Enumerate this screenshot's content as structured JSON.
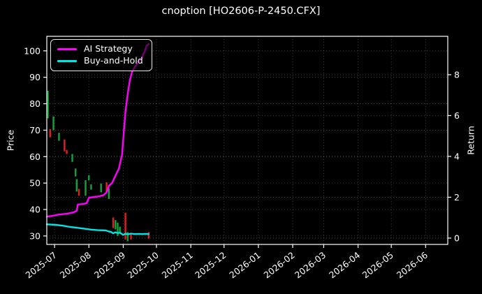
{
  "title": "cnoption [HO2606-P-2450.CFX]",
  "legend": {
    "items": [
      {
        "label": "AI Strategy",
        "color": "#ff00ff"
      },
      {
        "label": "Buy-and-Hold",
        "color": "#00e5e5"
      }
    ]
  },
  "axes": {
    "left": {
      "label": "Price",
      "ticks": [
        30,
        40,
        50,
        60,
        70,
        80,
        90,
        100
      ],
      "range": [
        26.8,
        105.5
      ]
    },
    "right": {
      "label": "Return",
      "ticks": [
        0,
        2,
        4,
        6,
        8
      ],
      "range": [
        -0.31,
        9.88
      ]
    },
    "x": {
      "tick_labels": [
        "2025-07",
        "2025-08",
        "2025-09",
        "2025-10",
        "2025-11",
        "2025-12",
        "2026-01",
        "2026-02",
        "2026-03",
        "2026-04",
        "2026-05",
        "2026-06"
      ],
      "tick_dates": [
        "2025-07-01",
        "2025-08-01",
        "2025-09-01",
        "2025-10-01",
        "2025-11-01",
        "2025-12-01",
        "2026-01-01",
        "2026-02-01",
        "2026-03-01",
        "2026-04-01",
        "2026-05-01",
        "2026-06-01"
      ],
      "range": [
        "2025-06-24",
        "2026-06-21"
      ],
      "tick_rotation": -38
    }
  },
  "chart_data": {
    "type": "mixed",
    "grid": true,
    "legend_position": "upper-left",
    "series": [
      {
        "name": "AI Strategy",
        "type": "line",
        "axis": "price",
        "color": "#ff00ff",
        "points": [
          [
            "2025-06-24",
            37.3
          ],
          [
            "2025-06-29",
            37.6
          ],
          [
            "2025-07-05",
            38.1
          ],
          [
            "2025-07-12",
            38.4
          ],
          [
            "2025-07-18",
            38.9
          ],
          [
            "2025-07-21",
            39.5
          ],
          [
            "2025-07-22",
            41.9
          ],
          [
            "2025-07-27",
            42.1
          ],
          [
            "2025-07-30",
            42.4
          ],
          [
            "2025-08-01",
            44.5
          ],
          [
            "2025-08-09",
            44.9
          ],
          [
            "2025-08-14",
            45.4
          ],
          [
            "2025-08-17",
            46.5
          ],
          [
            "2025-08-19",
            48.9
          ],
          [
            "2025-08-22",
            50.1
          ],
          [
            "2025-08-24",
            51.9
          ],
          [
            "2025-08-26",
            53.7
          ],
          [
            "2025-08-28",
            55.4
          ],
          [
            "2025-08-29",
            57.2
          ],
          [
            "2025-08-31",
            60.9
          ],
          [
            "2025-09-01",
            66.5
          ],
          [
            "2025-09-02",
            71.7
          ],
          [
            "2025-09-03",
            77.0
          ],
          [
            "2025-09-05",
            83.6
          ],
          [
            "2025-09-07",
            88.9
          ],
          [
            "2025-09-09",
            92.1
          ],
          [
            "2025-09-12",
            94.2
          ],
          [
            "2025-09-15",
            96.0
          ],
          [
            "2025-09-18",
            97.4
          ],
          [
            "2025-09-19",
            98.7
          ],
          [
            "2025-09-21",
            100.3
          ],
          [
            "2025-09-22",
            101.8
          ],
          [
            "2025-09-24",
            102.6
          ]
        ]
      },
      {
        "name": "Buy-and-Hold",
        "type": "line",
        "axis": "price",
        "color": "#00e5e5",
        "points": [
          [
            "2025-06-24",
            34.4
          ],
          [
            "2025-07-02",
            34.2
          ],
          [
            "2025-07-08",
            33.9
          ],
          [
            "2025-07-15",
            33.4
          ],
          [
            "2025-07-21",
            33.1
          ],
          [
            "2025-07-27",
            32.8
          ],
          [
            "2025-08-03",
            32.4
          ],
          [
            "2025-08-09",
            32.2
          ],
          [
            "2025-08-16",
            32.1
          ],
          [
            "2025-08-19",
            31.7
          ],
          [
            "2025-08-21",
            31.5
          ],
          [
            "2025-08-23",
            31.0
          ],
          [
            "2025-08-25",
            31.4
          ],
          [
            "2025-08-27",
            31.1
          ],
          [
            "2025-08-29",
            31.2
          ],
          [
            "2025-09-01",
            30.4
          ],
          [
            "2025-09-03",
            30.9
          ],
          [
            "2025-09-05",
            30.6
          ],
          [
            "2025-09-08",
            30.9
          ],
          [
            "2025-09-11",
            30.7
          ],
          [
            "2025-09-15",
            30.8
          ],
          [
            "2025-09-18",
            30.7
          ],
          [
            "2025-09-21",
            30.8
          ],
          [
            "2025-09-24",
            30.7
          ]
        ]
      },
      {
        "name": "Price candles",
        "type": "candlestick",
        "axis": "price",
        "up_color": "#0fa43c",
        "down_color": "#e32020",
        "candles": [
          {
            "date": "2025-06-25",
            "low": 74.5,
            "high": 84.9,
            "dir": "up"
          },
          {
            "date": "2025-06-27",
            "low": 67.3,
            "high": 70.4,
            "dir": "down"
          },
          {
            "date": "2025-06-30",
            "low": 70.0,
            "high": 75.2,
            "dir": "up"
          },
          {
            "date": "2025-07-05",
            "low": 66.0,
            "high": 69.0,
            "dir": "up"
          },
          {
            "date": "2025-07-10",
            "low": 62.0,
            "high": 66.5,
            "dir": "down"
          },
          {
            "date": "2025-07-12",
            "low": 61.0,
            "high": 62.5,
            "dir": "down"
          },
          {
            "date": "2025-07-17",
            "low": 58.0,
            "high": 61.0,
            "dir": "up"
          },
          {
            "date": "2025-07-20",
            "low": 52.5,
            "high": 55.5,
            "dir": "up"
          },
          {
            "date": "2025-07-21",
            "low": 46.8,
            "high": 51.5,
            "dir": "up"
          },
          {
            "date": "2025-07-23",
            "low": 45.2,
            "high": 47.8,
            "dir": "down"
          },
          {
            "date": "2025-07-29",
            "low": 45.2,
            "high": 51.1,
            "dir": "up"
          },
          {
            "date": "2025-08-01",
            "low": 51.0,
            "high": 53.0,
            "dir": "up"
          },
          {
            "date": "2025-08-03",
            "low": 47.5,
            "high": 49.5,
            "dir": "up"
          },
          {
            "date": "2025-08-12",
            "low": 46.5,
            "high": 49.8,
            "dir": "up"
          },
          {
            "date": "2025-08-17",
            "low": 46.7,
            "high": 50.3,
            "dir": "down"
          },
          {
            "date": "2025-08-19",
            "low": 44.0,
            "high": 48.0,
            "dir": "up"
          },
          {
            "date": "2025-08-23",
            "low": 33.0,
            "high": 37.0,
            "dir": "down"
          },
          {
            "date": "2025-08-25",
            "low": 32.5,
            "high": 36.0,
            "dir": "up"
          },
          {
            "date": "2025-08-27",
            "low": 30.0,
            "high": 35.0,
            "dir": "up"
          },
          {
            "date": "2025-08-29",
            "low": 31.0,
            "high": 33.5,
            "dir": "up"
          },
          {
            "date": "2025-09-03",
            "low": 28.7,
            "high": 38.8,
            "dir": "down"
          },
          {
            "date": "2025-09-05",
            "low": 28.0,
            "high": 31.5,
            "dir": "up"
          },
          {
            "date": "2025-09-08",
            "low": 28.7,
            "high": 31.0,
            "dir": "down"
          },
          {
            "date": "2025-09-24",
            "low": 29.0,
            "high": 31.5,
            "dir": "down"
          }
        ]
      }
    ]
  },
  "colors": {
    "background": "#000000",
    "text": "#ffffff",
    "grid": "rgba(255,255,255,0.3)",
    "spine": "#ffffff"
  }
}
